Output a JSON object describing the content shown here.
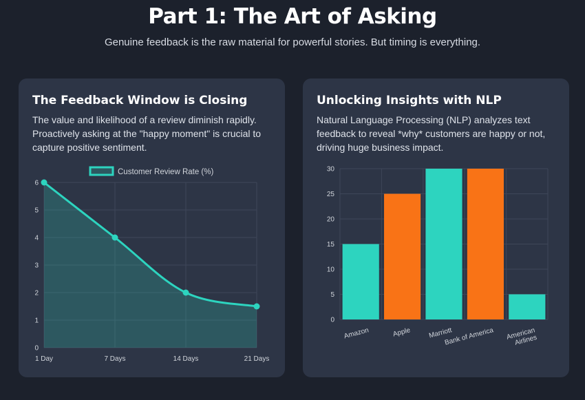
{
  "header": {
    "title": "Part 1: The Art of Asking",
    "subtitle": "Genuine feedback is the raw material for powerful stories. But timing is everything."
  },
  "cards": [
    {
      "title": "The Feedback Window is Closing",
      "text": "The value and likelihood of a review diminish rapidly. Proactively asking at the \"happy moment\" is crucial to capture positive sentiment."
    },
    {
      "title": "Unlocking Insights with NLP",
      "text": "Natural Language Processing (NLP) analyzes text feedback to reveal *why* customers are happy or not, driving huge business impact."
    }
  ],
  "colors": {
    "teal": "#2dd4bf",
    "orange": "#f97316",
    "grid": "#3e4759",
    "tick": "#d1d5db"
  },
  "chart_data": [
    {
      "type": "line",
      "x": [
        "1 Day",
        "7 Days",
        "14 Days",
        "21 Days"
      ],
      "series": [
        {
          "name": "Customer Review Rate (%)",
          "values": [
            6,
            4,
            2,
            1.5
          ]
        }
      ],
      "yticks": [
        0,
        1,
        2,
        3,
        4,
        5,
        6
      ],
      "ylim": [
        0,
        6
      ],
      "fill": true,
      "legend": "top",
      "grid": true
    },
    {
      "type": "bar",
      "categories": [
        "Amazon",
        "Apple",
        "Marriott",
        "Bank of America",
        "American Airlines"
      ],
      "category_lines": [
        [
          "Amazon"
        ],
        [
          "Apple"
        ],
        [
          "Marriott"
        ],
        [
          "Bank of America"
        ],
        [
          "American",
          "Airlines"
        ]
      ],
      "values": [
        15,
        25,
        30,
        30,
        5
      ],
      "bar_colors": [
        "#2dd4bf",
        "#f97316",
        "#2dd4bf",
        "#f97316",
        "#2dd4bf"
      ],
      "yticks": [
        0,
        5,
        10,
        15,
        20,
        25,
        30
      ],
      "ylim": [
        0,
        30
      ],
      "grid": true
    }
  ]
}
